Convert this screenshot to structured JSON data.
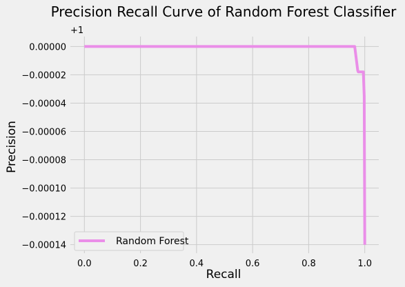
{
  "chart_data": {
    "type": "line",
    "title": "Precision Recall Curve of Random Forest Classifier",
    "xlabel": "Recall",
    "ylabel": "Precision",
    "offset_text": "+1",
    "xlim": [
      -0.05,
      1.05
    ],
    "ylim_offset": [
      -0.000146,
      7e-06
    ],
    "xticks": [
      0.0,
      0.2,
      0.4,
      0.6,
      0.8,
      1.0
    ],
    "xtick_labels": [
      "0.0",
      "0.2",
      "0.4",
      "0.6",
      "0.8",
      "1.0"
    ],
    "yticks": [
      0.0,
      -2e-05,
      -4e-05,
      -6e-05,
      -8e-05,
      -0.0001,
      -0.00012,
      -0.00014
    ],
    "ytick_labels": [
      "0.00000",
      "−0.00002",
      "−0.00004",
      "−0.00006",
      "−0.00008",
      "−0.00010",
      "−0.00012",
      "−0.00014"
    ],
    "grid": true,
    "legend_position": "lower-left",
    "series": [
      {
        "name": "Random Forest",
        "color": "#ea8ee8",
        "x": [
          0.0,
          0.964,
          0.975,
          0.977,
          0.995,
          0.998,
          1.0
        ],
        "y_offset": [
          0.0,
          0.0,
          -1.7e-05,
          -1.8e-05,
          -1.8e-05,
          -3.5e-05,
          -0.00014
        ]
      }
    ]
  }
}
